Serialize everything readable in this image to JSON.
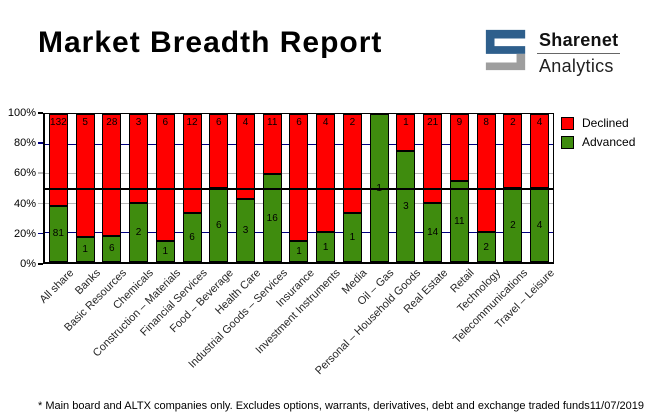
{
  "title": "Market Breadth Report",
  "logo": {
    "line1": "Sharenet",
    "line2": "Analytics"
  },
  "colors": {
    "declined": "#ff0000",
    "advanced": "#3f8c0e",
    "grid_navy": "#000080",
    "grid_silver": "#b8b8b8",
    "logo_blue": "#2e5f8c",
    "logo_gray": "#9e9e9e"
  },
  "footer": {
    "note": "* Main board and ALTX companies only. Excludes options, warrants, derivatives, debt and exchange traded funds",
    "date": "11/07/2019"
  },
  "chart_data": {
    "type": "bar",
    "stacked": true,
    "value_mode": "percent-stacked",
    "title": "",
    "xlabel": "",
    "ylabel": "",
    "ylim": [
      0,
      100
    ],
    "y_ticks": [
      {
        "label": "100%",
        "percent": 100,
        "tick": "black"
      },
      {
        "label": "80%",
        "percent": 80,
        "tick": "navy"
      },
      {
        "label": "60%",
        "percent": 60,
        "tick": "silver"
      },
      {
        "label": "40%",
        "percent": 40,
        "tick": "silver"
      },
      {
        "label": "20%",
        "percent": 20,
        "tick": "navy"
      },
      {
        "label": "0%",
        "percent": 0,
        "tick": "black"
      }
    ],
    "gridlines": [
      {
        "percent": 80,
        "style": "navy"
      },
      {
        "percent": 60,
        "style": "silver"
      },
      {
        "percent": 40,
        "style": "silver"
      },
      {
        "percent": 20,
        "style": "navy"
      }
    ],
    "midline_percent": 50,
    "legend_position": "right-top",
    "categories": [
      "All share",
      "Banks",
      "Basic Resources",
      "Chemicals",
      "Construction – Materials",
      "Financial Services",
      "Food – Beverage",
      "Health Care",
      "Industrial Goods – Services",
      "Insurance",
      "Investment Instruments",
      "Media",
      "Oil – Gas",
      "Personal – Household Goods",
      "Real Estate",
      "Retail",
      "Technology",
      "Telecommunications",
      "Travel – Leisure"
    ],
    "series": [
      {
        "name": "Advanced",
        "color": "#3f8c0e",
        "values": [
          81,
          1,
          6,
          2,
          1,
          6,
          6,
          3,
          16,
          1,
          1,
          1,
          1,
          3,
          14,
          11,
          2,
          2,
          4
        ]
      },
      {
        "name": "Declined",
        "color": "#ff0000",
        "values": [
          132,
          5,
          28,
          3,
          6,
          12,
          6,
          4,
          11,
          6,
          4,
          2,
          0,
          1,
          21,
          9,
          8,
          2,
          4
        ]
      }
    ]
  }
}
